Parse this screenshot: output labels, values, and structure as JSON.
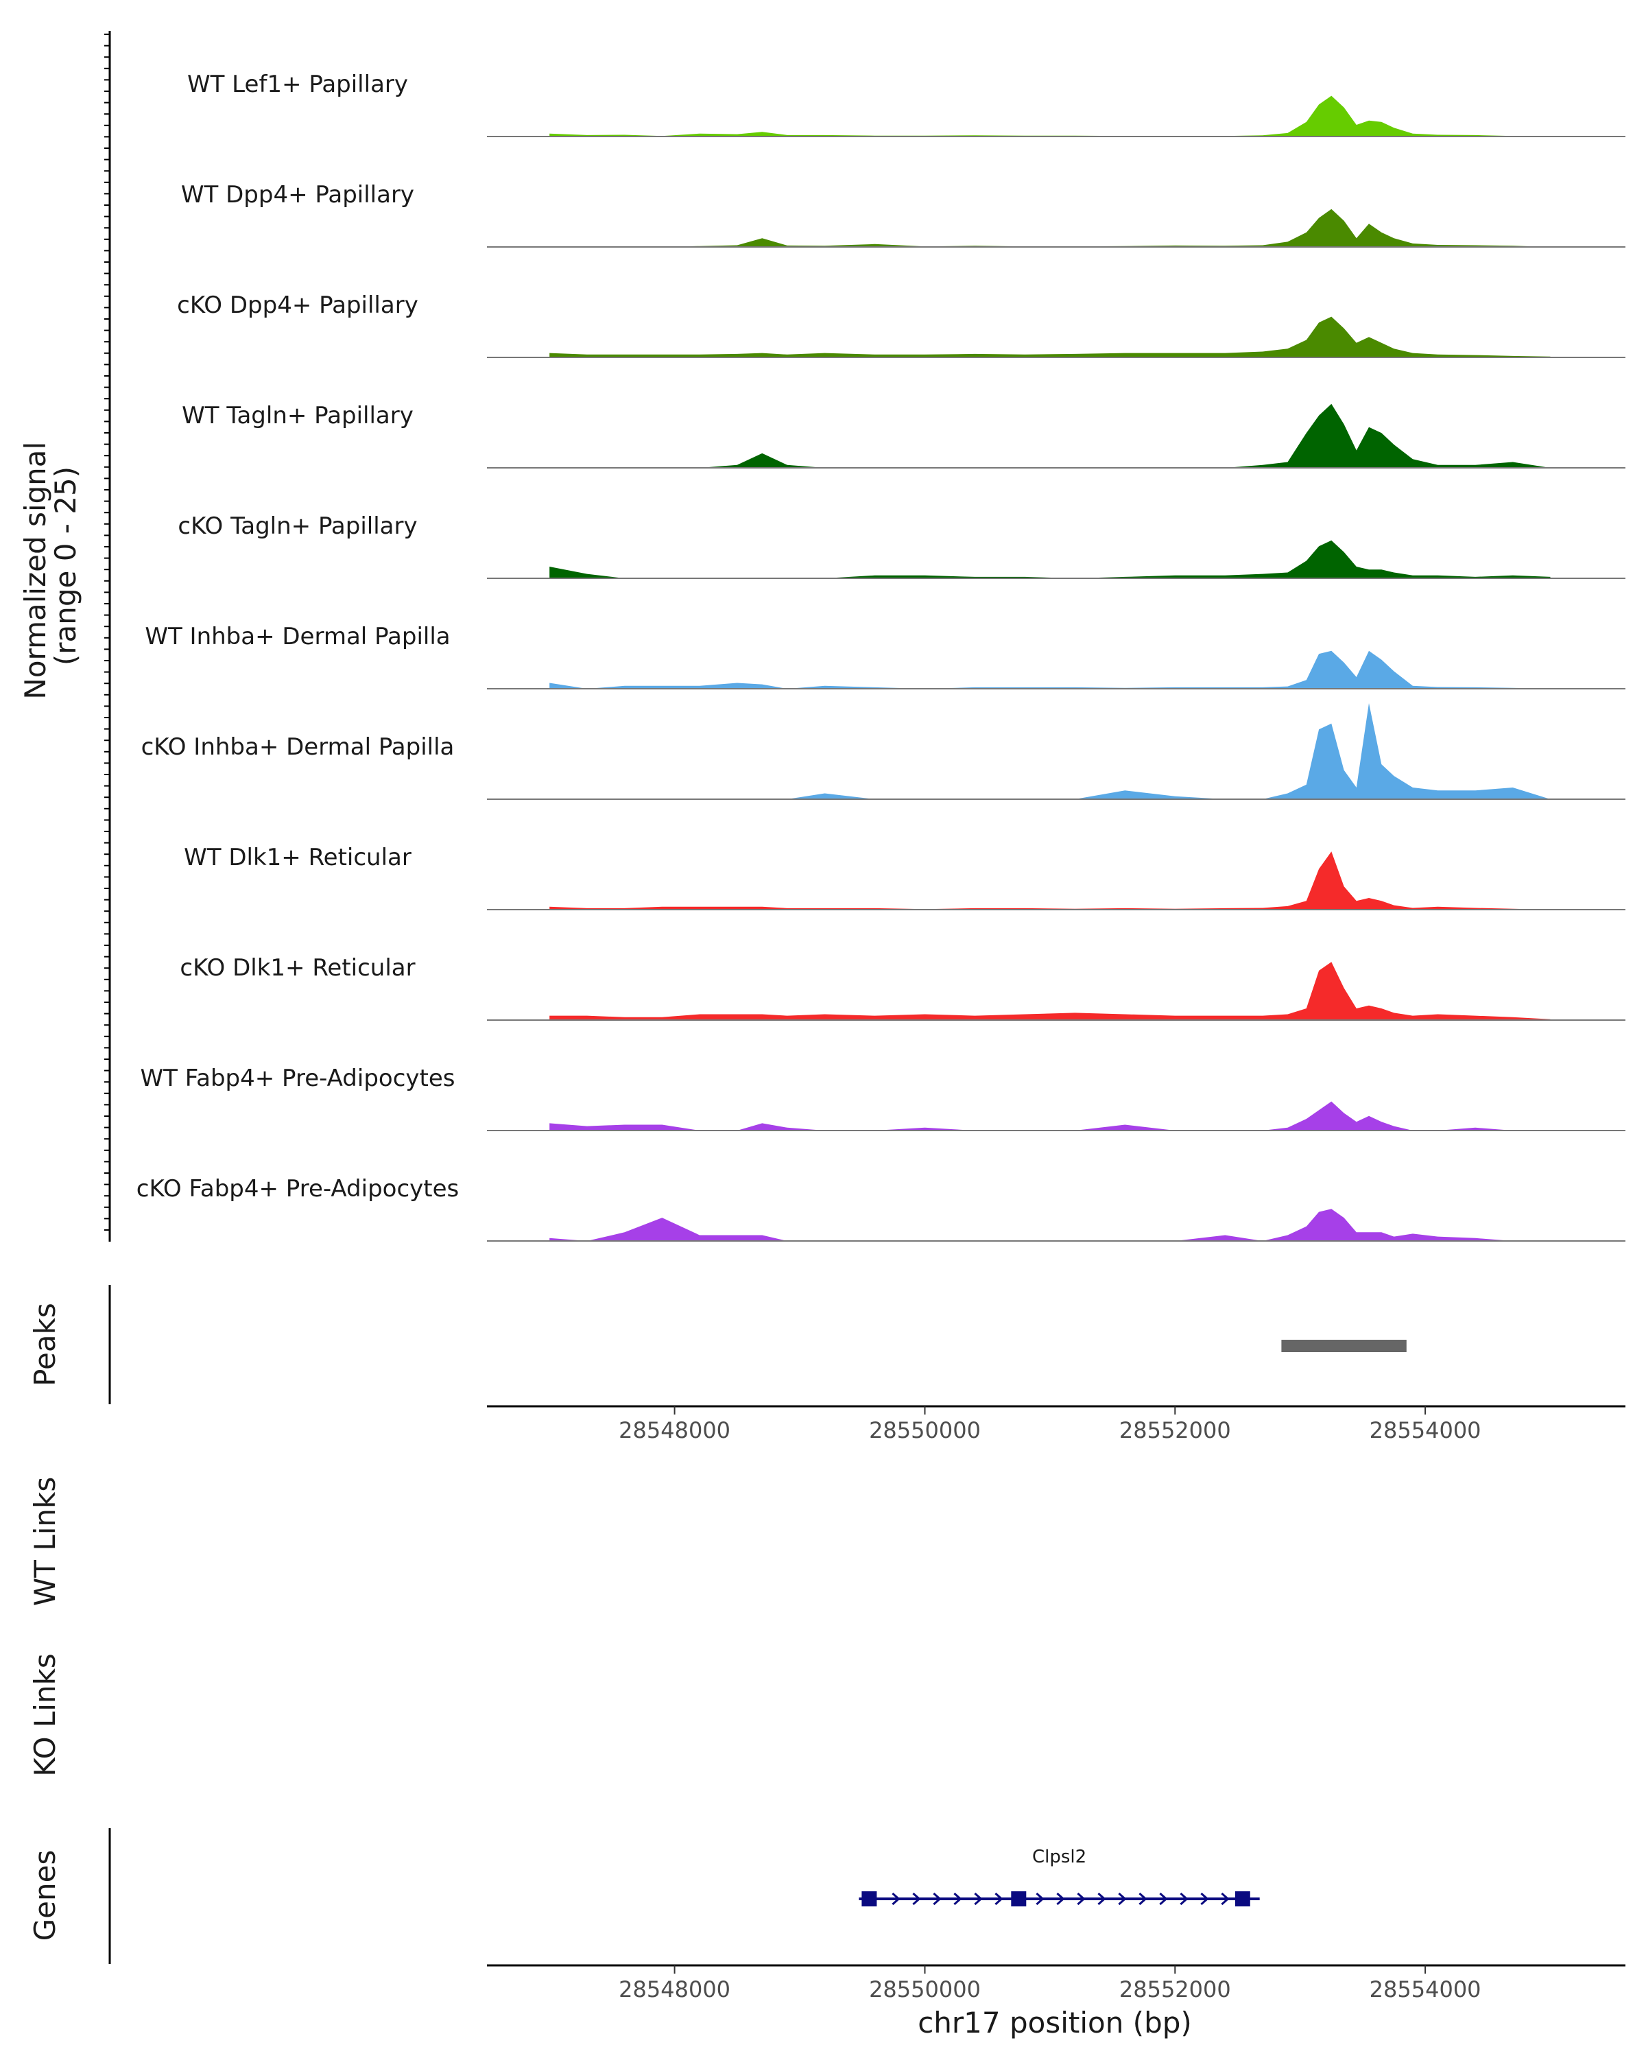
{
  "chart_data": {
    "type": "area",
    "title": "",
    "ylabel": "Normalized signal\n(range 0 - 25)",
    "ylabel_lines": [
      "Normalized signal",
      "(range 0 - 25)"
    ],
    "ylim": [
      0,
      25
    ],
    "xlim": [
      28546500,
      28555600
    ],
    "xlabel": "chr17 position (bp)",
    "x_ticks": [
      28548000,
      28550000,
      28552000,
      28554000
    ],
    "x_tick_labels": [
      "28548000",
      "28550000",
      "28552000",
      "28554000"
    ],
    "x": [
      28547000,
      28547300,
      28547600,
      28547900,
      28548200,
      28548500,
      28548700,
      28548900,
      28549200,
      28549600,
      28550000,
      28550400,
      28550800,
      28551200,
      28551600,
      28552000,
      28552400,
      28552700,
      28552900,
      28553050,
      28553150,
      28553250,
      28553350,
      28553450,
      28553550,
      28553650,
      28553750,
      28553900,
      28554100,
      28554400,
      28554700,
      28555000
    ],
    "series": [
      {
        "name": "WT Lef1+ Papillary",
        "color": "#66cc00",
        "values": [
          1,
          0.5,
          0.6,
          0.2,
          1,
          0.8,
          1.6,
          0.5,
          0.5,
          0.3,
          0.3,
          0.4,
          0.3,
          0.3,
          0.2,
          0.2,
          0.2,
          0.4,
          1.2,
          5,
          11,
          14,
          10,
          4,
          5.5,
          5,
          3,
          1,
          0.6,
          0.5,
          0.2,
          0
        ]
      },
      {
        "name": "WT Dpp4+ Papillary",
        "color": "#4a8a00",
        "values": [
          0,
          0,
          0,
          0,
          0.3,
          0.6,
          3,
          0.5,
          0.4,
          1,
          0.2,
          0.4,
          0.2,
          0.2,
          0.3,
          0.5,
          0.4,
          0.6,
          1.8,
          5,
          10,
          13,
          9,
          3,
          8,
          5,
          3,
          1.2,
          0.7,
          0.6,
          0.4,
          0
        ]
      },
      {
        "name": "cKO Dpp4+ Papillary",
        "color": "#4a8a00",
        "values": [
          1.5,
          1,
          1,
          1,
          1,
          1.2,
          1.5,
          1,
          1.5,
          1,
          1,
          1.2,
          1,
          1.2,
          1.5,
          1.5,
          1.5,
          2,
          3,
          6,
          12,
          14,
          10,
          5,
          7,
          5,
          3,
          1.5,
          1,
          0.8,
          0.5,
          0.3
        ]
      },
      {
        "name": "WT Tagln+ Papillary",
        "color": "#006400",
        "values": [
          0,
          0,
          0,
          0,
          0,
          1,
          5,
          1,
          0,
          0,
          0,
          0,
          0,
          0,
          0,
          0,
          0,
          1,
          2,
          12,
          18,
          22,
          15,
          6,
          14,
          12,
          8,
          3,
          1,
          1,
          2,
          0
        ]
      },
      {
        "name": "cKO Tagln+ Papillary",
        "color": "#006400",
        "values": [
          4,
          1.5,
          0,
          0,
          0,
          0,
          0,
          0,
          0,
          1,
          1,
          0.5,
          0.5,
          0,
          0.5,
          1,
          1,
          1.5,
          2,
          6,
          11,
          13,
          9,
          4,
          3,
          3,
          2,
          1,
          1,
          0.5,
          1,
          0.5
        ]
      },
      {
        "name": "WT Inhba+ Dermal Papilla",
        "color": "#5aa9e6",
        "values": [
          2,
          0,
          1,
          1,
          1,
          2,
          1.5,
          0,
          1,
          0.5,
          0,
          0.5,
          0.5,
          0.5,
          0.3,
          0.5,
          0.5,
          0.5,
          0.8,
          3,
          12,
          13,
          9,
          4,
          13,
          10,
          6,
          1,
          0.6,
          0.5,
          0.3,
          0
        ]
      },
      {
        "name": "cKO Inhba+ Dermal Papilla",
        "color": "#5aa9e6",
        "values": [
          0,
          0,
          0,
          0,
          0,
          0,
          0,
          0,
          2,
          0,
          0,
          0,
          0,
          0,
          3,
          1,
          0,
          0,
          2,
          5,
          24,
          26,
          10,
          4,
          33,
          12,
          8,
          4,
          3,
          3,
          4,
          0
        ]
      },
      {
        "name": "WT Dlk1+ Reticular",
        "color": "#f52a2a",
        "values": [
          1,
          0.5,
          0.5,
          1,
          1,
          1,
          1,
          0.5,
          0.5,
          0.5,
          0.2,
          0.5,
          0.5,
          0.3,
          0.5,
          0.3,
          0.5,
          0.6,
          1.2,
          3,
          14,
          20,
          8,
          3,
          4,
          3,
          1.5,
          0.6,
          1,
          0.6,
          0.3,
          0
        ]
      },
      {
        "name": "cKO Dlk1+ Reticular",
        "color": "#f52a2a",
        "values": [
          1.5,
          1.5,
          1,
          1,
          2,
          2,
          2,
          1.5,
          2,
          1.5,
          2,
          1.5,
          2,
          2.5,
          2,
          1.5,
          1.5,
          1.5,
          2,
          4,
          17,
          20,
          11,
          4,
          5,
          4,
          2.5,
          1.5,
          2,
          1.5,
          1,
          0.3
        ]
      },
      {
        "name": "WT Fabp4+ Pre-Adipocytes",
        "color": "#a640e8",
        "values": [
          2.5,
          1.5,
          2,
          2,
          0,
          0,
          2.5,
          1,
          0,
          0,
          1,
          0,
          0,
          0,
          2,
          0,
          0,
          0,
          1,
          4,
          7,
          10,
          6,
          3,
          5,
          3,
          1.5,
          0,
          0,
          1,
          0,
          0
        ]
      },
      {
        "name": "cKO Fabp4+ Pre-Adipocytes",
        "color": "#a640e8",
        "values": [
          1,
          0,
          3,
          8,
          2,
          2,
          2,
          0,
          0,
          0,
          0,
          0,
          0,
          0,
          0,
          0,
          2,
          0,
          2,
          5,
          10,
          11,
          8,
          3,
          3,
          3,
          1.5,
          2.5,
          1.5,
          1,
          0,
          0
        ]
      }
    ],
    "peaks_label": "Peaks",
    "peaks": [
      {
        "start": 28552850,
        "end": 28553850
      }
    ],
    "links_labels": [
      "WT Links",
      "KO Links"
    ],
    "genes_label": "Genes",
    "genes": [
      {
        "name": "Clpsl2",
        "start": 28549550,
        "end": 28552600,
        "exons": [
          28549550,
          28550750,
          28552480,
          28552600
        ]
      }
    ]
  }
}
